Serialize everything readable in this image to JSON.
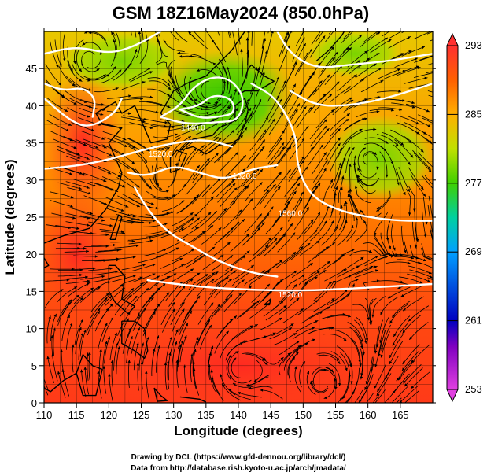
{
  "figure": {
    "title": "GSM 18Z16May2024 (850.0hPa)",
    "credits": [
      "Drawing by DCL (https://www.gfd-dennou.org/library/dcl/)",
      "Data from http://database.rish.kyoto-u.ac.jp/arch/jmadata/"
    ]
  },
  "chart_data": {
    "type": "heatmap",
    "title": "GSM 18Z16May2024 (850.0hPa)",
    "xlabel": "Longitude (degrees)",
    "ylabel": "Latitude  (degrees)",
    "xlim": [
      110,
      170
    ],
    "ylim": [
      0,
      50
    ],
    "x_ticks": [
      110,
      115,
      120,
      125,
      130,
      135,
      140,
      145,
      150,
      155,
      160,
      165
    ],
    "y_ticks": [
      0,
      5,
      10,
      15,
      20,
      25,
      30,
      35,
      40,
      45
    ],
    "grid": true,
    "colorbar": {
      "min": 253,
      "max": 293,
      "ticks": [
        253,
        261,
        269,
        277,
        285,
        293
      ],
      "stops": [
        {
          "value": 253,
          "color": "#e040e0"
        },
        {
          "value": 258,
          "color": "#8000c0"
        },
        {
          "value": 261,
          "color": "#0000c0"
        },
        {
          "value": 269,
          "color": "#00a0ff"
        },
        {
          "value": 273,
          "color": "#00d0a0"
        },
        {
          "value": 277,
          "color": "#40d000"
        },
        {
          "value": 281,
          "color": "#c0e000"
        },
        {
          "value": 285,
          "color": "#ffb000"
        },
        {
          "value": 289,
          "color": "#ff6000"
        },
        {
          "value": 293,
          "color": "#ff3030"
        }
      ]
    },
    "contour_labels": [
      {
        "text": "1440.0",
        "lon": 133,
        "lat": 37
      },
      {
        "text": "1520.0",
        "lon": 128,
        "lat": 33.5
      },
      {
        "text": "1520.0",
        "lon": 141,
        "lat": 30.5
      },
      {
        "text": "1560.0",
        "lon": 148,
        "lat": 25.5
      },
      {
        "text": "1520.0",
        "lon": 148,
        "lat": 14.5
      }
    ],
    "contours": [
      {
        "value": "1440",
        "points": [
          [
            128,
            38.5
          ],
          [
            131,
            40
          ],
          [
            133,
            42.5
          ],
          [
            136,
            44
          ],
          [
            139,
            43.5
          ],
          [
            141,
            41
          ],
          [
            140,
            38
          ],
          [
            137,
            37.8
          ],
          [
            132,
            37.5
          ],
          [
            128,
            38.5
          ]
        ]
      },
      {
        "value": "1440",
        "points": [
          [
            131,
            39.5
          ],
          [
            134,
            40
          ],
          [
            136,
            41.5
          ],
          [
            139,
            41
          ],
          [
            139.5,
            39
          ],
          [
            137,
            38.5
          ],
          [
            134,
            38.3
          ],
          [
            131,
            39.5
          ]
        ]
      },
      {
        "value": "1520",
        "points": [
          [
            110,
            41
          ],
          [
            114,
            38
          ],
          [
            117,
            37
          ],
          [
            121,
            39
          ],
          [
            122,
            41
          ]
        ]
      },
      {
        "value": "1520",
        "points": [
          [
            110,
            43
          ],
          [
            113,
            42
          ],
          [
            116,
            42.5
          ],
          [
            118,
            41
          ],
          [
            117.5,
            38.5
          ]
        ]
      },
      {
        "value": "1520",
        "points": [
          [
            110,
            31.5
          ],
          [
            116,
            32
          ],
          [
            121,
            33
          ],
          [
            125,
            34
          ],
          [
            130,
            35
          ],
          [
            135,
            35.5
          ],
          [
            139,
            34.5
          ]
        ]
      },
      {
        "value": "1520",
        "points": [
          [
            123,
            31
          ],
          [
            126,
            30.5
          ],
          [
            130,
            32
          ],
          [
            134,
            31
          ],
          [
            138,
            30
          ],
          [
            142,
            31.5
          ],
          [
            146,
            32
          ]
        ]
      },
      {
        "value": "1520",
        "points": [
          [
            110,
            47
          ],
          [
            115,
            48
          ],
          [
            120,
            47
          ],
          [
            124,
            48
          ],
          [
            128,
            50
          ]
        ]
      },
      {
        "value": "1520",
        "points": [
          [
            146,
            50
          ],
          [
            148,
            47
          ],
          [
            152,
            45
          ],
          [
            157,
            45.5
          ],
          [
            163,
            46
          ],
          [
            170,
            47
          ]
        ]
      },
      {
        "value": "1560",
        "points": [
          [
            142,
            43
          ],
          [
            146,
            41
          ],
          [
            149,
            36
          ],
          [
            149,
            32
          ],
          [
            151,
            28
          ],
          [
            155,
            26
          ],
          [
            160,
            25
          ],
          [
            165,
            24.5
          ],
          [
            170,
            24.5
          ]
        ]
      },
      {
        "value": "1560",
        "points": [
          [
            148,
            42
          ],
          [
            152,
            40
          ],
          [
            157,
            40
          ],
          [
            163,
            41
          ],
          [
            170,
            43
          ]
        ]
      },
      {
        "value": "1560",
        "points": [
          [
            124,
            29
          ],
          [
            126,
            26
          ],
          [
            129,
            23
          ],
          [
            133,
            21
          ],
          [
            137,
            19
          ],
          [
            142,
            17.5
          ],
          [
            146,
            17
          ]
        ]
      },
      {
        "value": "1520",
        "points": [
          [
            126,
            16.5
          ],
          [
            134,
            15.6
          ],
          [
            142,
            15.2
          ],
          [
            150,
            15.1
          ],
          [
            158,
            15.4
          ],
          [
            166,
            15.8
          ],
          [
            170,
            16
          ]
        ]
      }
    ]
  }
}
